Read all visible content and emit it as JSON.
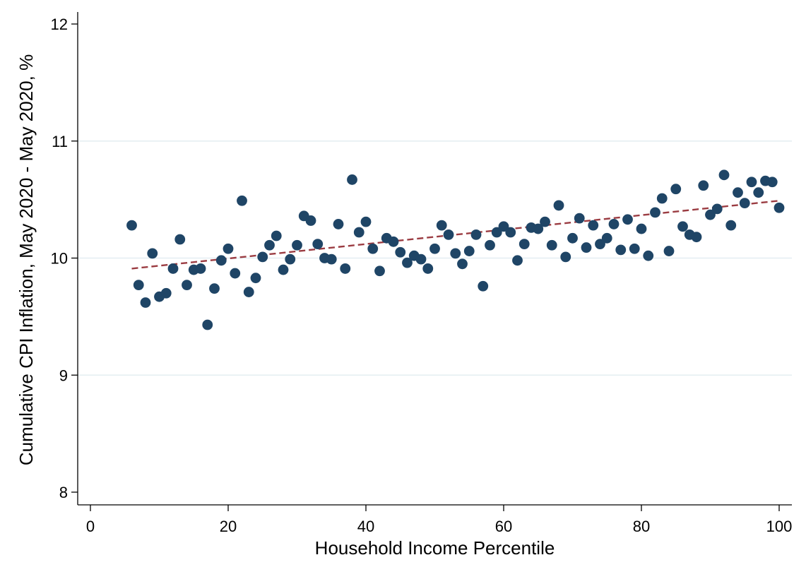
{
  "chart_data": {
    "type": "scatter",
    "title": "",
    "xlabel": "Household Income Percentile",
    "ylabel": "Cumulative CPI Inflation, May 2020 - May 2020, %",
    "xlim": [
      0,
      100
    ],
    "ylim": [
      8,
      12
    ],
    "xticks": [
      0,
      20,
      40,
      60,
      80,
      100
    ],
    "yticks": [
      8,
      9,
      10,
      11,
      12
    ],
    "grid": "horizontal",
    "colors": {
      "points": "#1f4566",
      "fit_line": "#9b3c42",
      "grid": "#e3eef1"
    },
    "series": [
      {
        "type": "scatter",
        "x": [
          6,
          7,
          8,
          9,
          10,
          11,
          12,
          13,
          14,
          15,
          16,
          17,
          18,
          19,
          20,
          21,
          22,
          23,
          24,
          25,
          26,
          27,
          28,
          29,
          30,
          31,
          32,
          33,
          34,
          35,
          36,
          37,
          38,
          39,
          40,
          41,
          42,
          43,
          44,
          45,
          46,
          47,
          48,
          49,
          50,
          51,
          52,
          53,
          54,
          55,
          56,
          57,
          58,
          59,
          60,
          61,
          62,
          63,
          64,
          65,
          66,
          67,
          68,
          69,
          70,
          71,
          72,
          73,
          74,
          75,
          76,
          77,
          78,
          79,
          80,
          81,
          82,
          83,
          84,
          85,
          86,
          87,
          88,
          89,
          90,
          91,
          92,
          93,
          94,
          95,
          96,
          97,
          98,
          99,
          100
        ],
        "y": [
          10.28,
          9.77,
          9.62,
          10.04,
          9.67,
          9.7,
          9.91,
          10.16,
          9.77,
          9.9,
          9.91,
          9.43,
          9.74,
          9.98,
          10.08,
          9.87,
          10.49,
          9.71,
          9.83,
          10.01,
          10.11,
          10.19,
          9.9,
          9.99,
          10.11,
          10.36,
          10.32,
          10.12,
          10.0,
          9.99,
          10.29,
          9.91,
          10.67,
          10.22,
          10.31,
          10.08,
          9.89,
          10.17,
          10.14,
          10.05,
          9.96,
          10.02,
          9.99,
          9.91,
          10.08,
          10.28,
          10.2,
          10.04,
          9.95,
          10.06,
          10.2,
          9.76,
          10.11,
          10.22,
          10.27,
          10.22,
          9.98,
          10.12,
          10.26,
          10.25,
          10.31,
          10.11,
          10.45,
          10.01,
          10.17,
          10.34,
          10.09,
          10.28,
          10.12,
          10.17,
          10.29,
          10.07,
          10.33,
          10.08,
          10.25,
          10.02,
          10.39,
          10.51,
          10.06,
          10.59,
          10.27,
          10.2,
          10.18,
          10.62,
          10.37,
          10.42,
          10.71,
          10.28,
          10.56,
          10.47,
          10.65,
          10.56,
          10.66,
          10.65,
          10.43
        ]
      },
      {
        "type": "line",
        "style": "dashed",
        "x": [
          6,
          100
        ],
        "y": [
          9.91,
          10.49
        ]
      }
    ]
  }
}
